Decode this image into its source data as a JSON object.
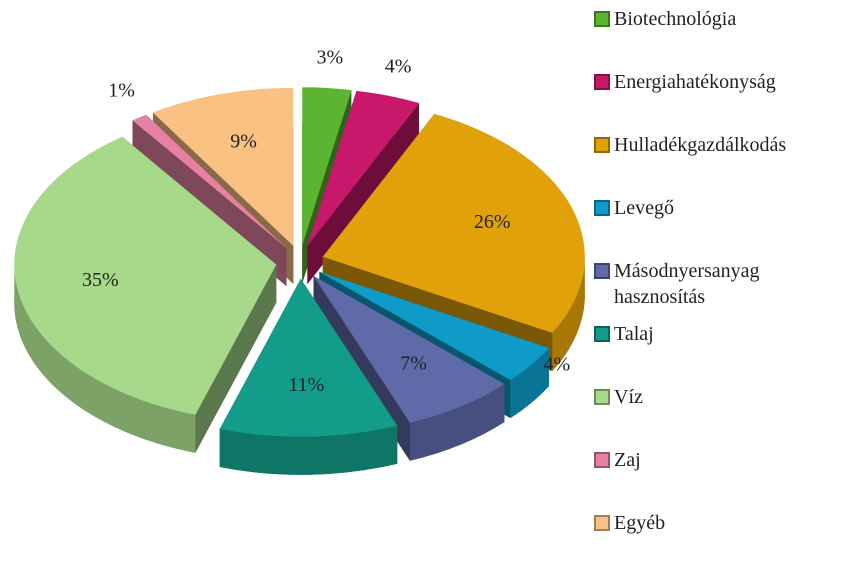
{
  "chart_data": {
    "type": "pie",
    "categories": [
      "Biotechnológia",
      "Energiahatékonyság",
      "Hulladékgazdálkodás",
      "Levegő",
      "Másodnyersanyag hasznosítás",
      "Talaj",
      "Víz",
      "Zaj",
      "Egyéb"
    ],
    "values": [
      3,
      4,
      26,
      4,
      7,
      11,
      35,
      1,
      9
    ],
    "value_labels": [
      "3%",
      "4%",
      "26%",
      "4%",
      "7%",
      "11%",
      "35%",
      "1%",
      "9%"
    ],
    "colors": [
      "#5cb531",
      "#c8186b",
      "#e0a10a",
      "#0f9bc8",
      "#5f6aa8",
      "#149c8a",
      "#a6d98a",
      "#e681a4",
      "#f9c283"
    ],
    "legend": "right"
  }
}
